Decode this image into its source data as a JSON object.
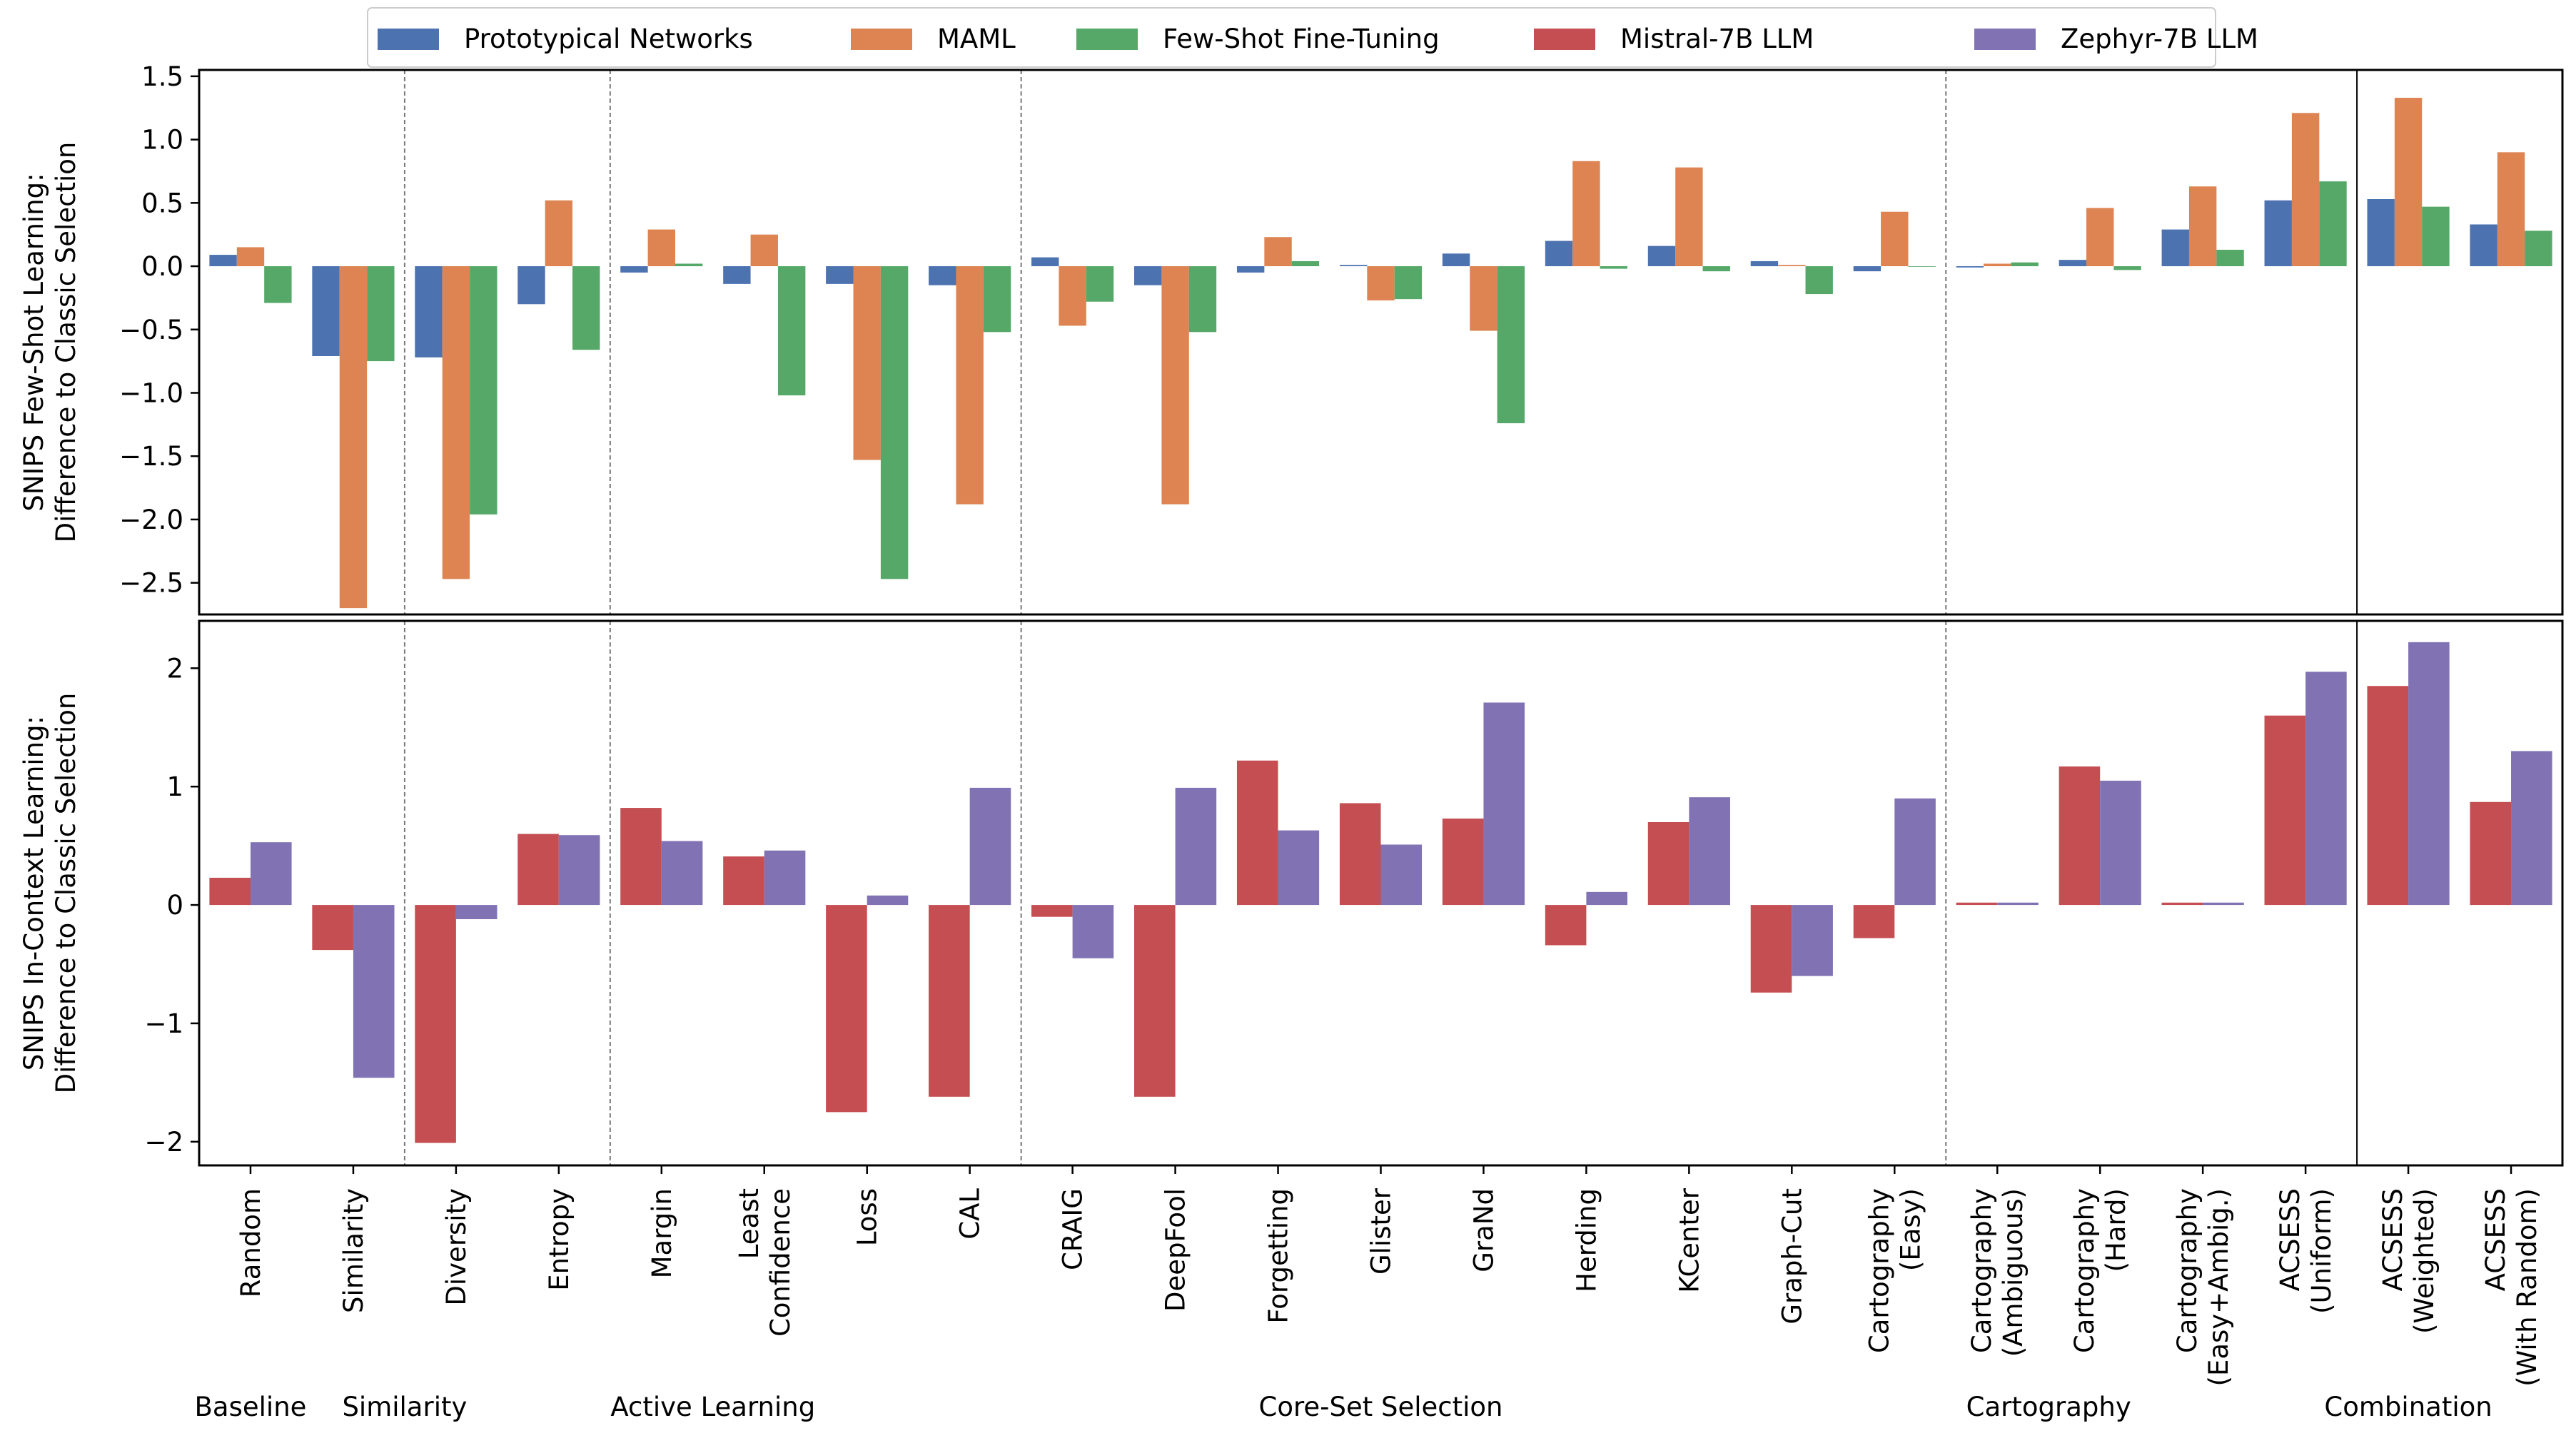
{
  "colors": {
    "Prototypical Networks": "#4c72b0",
    "MAML": "#dd8452",
    "Few-Shot Fine-Tuning": "#55a868",
    "Mistral-7B LLM": "#c44e52",
    "Zephyr-7B LLM": "#8172b3"
  },
  "legend": [
    "Prototypical Networks",
    "MAML",
    "Few-Shot Fine-Tuning",
    "Mistral-7B LLM",
    "Zephyr-7B LLM"
  ],
  "x_labels": [
    [
      "Random"
    ],
    [
      "Similarity"
    ],
    [
      "Diversity"
    ],
    [
      "Entropy"
    ],
    [
      "Margin"
    ],
    [
      "Least",
      "Confidence"
    ],
    [
      "Loss"
    ],
    [
      "CAL"
    ],
    [
      "CRAIG"
    ],
    [
      "DeepFool"
    ],
    [
      "Forgetting"
    ],
    [
      "Glister"
    ],
    [
      "GraNd"
    ],
    [
      "Herding"
    ],
    [
      "KCenter"
    ],
    [
      "Graph-Cut"
    ],
    [
      "Cartography",
      "(Easy)"
    ],
    [
      "Cartography",
      "(Ambiguous)"
    ],
    [
      "Cartography",
      "(Hard)"
    ],
    [
      "Cartography",
      "(Easy+Ambig.)"
    ],
    [
      "ACSESS",
      "(Uniform)"
    ],
    [
      "ACSESS",
      "(Weighted)"
    ],
    [
      "ACSESS",
      "(With Random)"
    ]
  ],
  "group_labels": [
    "Baseline",
    "Similarity",
    "Active Learning",
    "Core-Set Selection",
    "Cartography",
    "Combination"
  ],
  "chart_data": [
    {
      "type": "bar",
      "ylabel": "SNIPS Few-Shot Learning:\nDifference to Classic Selection",
      "ylim": [
        -2.75,
        1.55
      ],
      "yticks": [
        -2.5,
        -2.0,
        -1.5,
        -1.0,
        -0.5,
        0.0,
        0.5,
        1.0,
        1.5
      ],
      "ytick_labels": [
        "−2.5",
        "−2.0",
        "−1.5",
        "−1.0",
        "−0.5",
        "0.0",
        "0.5",
        "1.0",
        "1.5"
      ],
      "grid": false,
      "legend_location": "top-center",
      "categories": [
        "Random",
        "Similarity",
        "Diversity",
        "Entropy",
        "Margin",
        "Least Confidence",
        "Loss",
        "CAL",
        "CRAIG",
        "DeepFool",
        "Forgetting",
        "Glister",
        "GraNd",
        "Herding",
        "KCenter",
        "Graph-Cut",
        "Cartography (Easy)",
        "Cartography (Ambiguous)",
        "Cartography (Hard)",
        "Cartography (Easy+Ambig.)",
        "ACSESS (Uniform)",
        "ACSESS (Weighted)",
        "ACSESS (With Random)"
      ],
      "series": [
        {
          "name": "Prototypical Networks",
          "values": [
            0.09,
            -0.71,
            -0.72,
            -0.3,
            -0.05,
            -0.14,
            -0.14,
            -0.15,
            0.07,
            -0.15,
            -0.05,
            0.01,
            0.1,
            0.2,
            0.16,
            0.04,
            -0.04,
            -0.01,
            0.05,
            0.29,
            0.52,
            0.53,
            0.33
          ]
        },
        {
          "name": "MAML",
          "values": [
            0.15,
            -2.7,
            -2.47,
            0.52,
            0.29,
            0.25,
            -1.53,
            -1.88,
            -0.47,
            -1.88,
            0.23,
            -0.27,
            -0.51,
            0.83,
            0.78,
            0.01,
            0.43,
            0.02,
            0.46,
            0.63,
            1.21,
            1.33,
            0.9
          ]
        },
        {
          "name": "Few-Shot Fine-Tuning",
          "values": [
            -0.29,
            -0.75,
            -1.96,
            -0.66,
            0.02,
            -1.02,
            -2.47,
            -0.52,
            -0.28,
            -0.52,
            0.04,
            -0.26,
            -1.24,
            -0.02,
            -0.04,
            -0.22,
            0.0,
            0.03,
            -0.03,
            0.13,
            0.67,
            0.47,
            0.28
          ]
        }
      ]
    },
    {
      "type": "bar",
      "ylabel": "SNIPS In-Context Learning:\nDifference to Classic Selection",
      "ylim": [
        -2.2,
        2.4
      ],
      "yticks": [
        -2,
        -1,
        0,
        1,
        2
      ],
      "ytick_labels": [
        "−2",
        "−1",
        "0",
        "1",
        "2"
      ],
      "grid": false,
      "categories": [
        "Random",
        "Similarity",
        "Diversity",
        "Entropy",
        "Margin",
        "Least Confidence",
        "Loss",
        "CAL",
        "CRAIG",
        "DeepFool",
        "Forgetting",
        "Glister",
        "GraNd",
        "Herding",
        "KCenter",
        "Graph-Cut",
        "Cartography (Easy)",
        "Cartography (Ambiguous)",
        "Cartography (Hard)",
        "Cartography (Easy+Ambig.)",
        "ACSESS (Uniform)",
        "ACSESS (Weighted)",
        "ACSESS (With Random)"
      ],
      "series": [
        {
          "name": "Mistral-7B LLM",
          "values": [
            0.23,
            -0.38,
            -2.01,
            0.6,
            0.82,
            0.41,
            -1.75,
            -1.62,
            -0.1,
            -1.62,
            1.22,
            0.86,
            0.73,
            -0.34,
            0.7,
            -0.74,
            -0.28,
            0.02,
            1.17,
            0.02,
            1.6,
            1.85,
            0.87
          ]
        },
        {
          "name": "Zephyr-7B LLM",
          "values": [
            0.53,
            -1.46,
            -0.12,
            0.59,
            0.54,
            0.46,
            0.08,
            0.99,
            -0.45,
            0.99,
            0.63,
            0.51,
            1.71,
            0.11,
            0.91,
            -0.6,
            0.9,
            0.02,
            1.05,
            0.02,
            1.97,
            2.22,
            1.3
          ]
        }
      ]
    }
  ]
}
